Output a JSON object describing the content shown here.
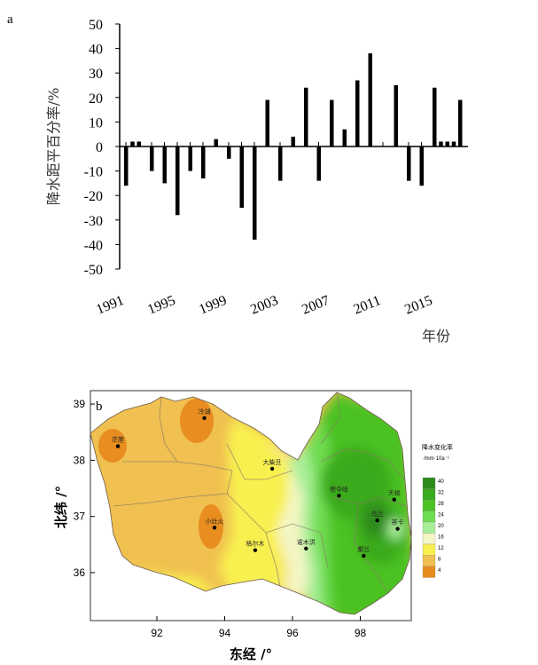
{
  "chart_data": [
    {
      "type": "bar",
      "panel_label": "a",
      "ylabel": "降水距平百分率/%",
      "xlabel": "年份",
      "ylim": [
        -50,
        50
      ],
      "yticks": [
        -50,
        -40,
        -30,
        -20,
        -10,
        0,
        10,
        20,
        30,
        40,
        50
      ],
      "xtick_labels": [
        "1991",
        "1995",
        "1999",
        "2003",
        "2007",
        "2011",
        "2015"
      ],
      "xtick_years": [
        1991,
        1995,
        1999,
        2003,
        2007,
        2011,
        2015
      ],
      "grid": false,
      "bars": [
        {
          "x": 1991,
          "y": -16
        },
        {
          "x": 1991.5,
          "y": 2
        },
        {
          "x": 1992,
          "y": 2
        },
        {
          "x": 1993,
          "y": -10
        },
        {
          "x": 1994,
          "y": -15
        },
        {
          "x": 1995,
          "y": -28
        },
        {
          "x": 1996,
          "y": -10
        },
        {
          "x": 1997,
          "y": -13
        },
        {
          "x": 1998,
          "y": 3
        },
        {
          "x": 1999,
          "y": -5
        },
        {
          "x": 2000,
          "y": -25
        },
        {
          "x": 2001,
          "y": -38
        },
        {
          "x": 2002,
          "y": 19
        },
        {
          "x": 2003,
          "y": -14
        },
        {
          "x": 2004,
          "y": 4
        },
        {
          "x": 2005,
          "y": 24
        },
        {
          "x": 2006,
          "y": -14
        },
        {
          "x": 2007,
          "y": 19
        },
        {
          "x": 2008,
          "y": 7
        },
        {
          "x": 2009,
          "y": 27
        },
        {
          "x": 2010,
          "y": 38
        },
        {
          "x": 2012,
          "y": 25
        },
        {
          "x": 2013,
          "y": -14
        },
        {
          "x": 2014,
          "y": -16
        },
        {
          "x": 2015,
          "y": 24
        },
        {
          "x": 2015.5,
          "y": 2
        },
        {
          "x": 2016,
          "y": 2
        },
        {
          "x": 2016.5,
          "y": 2
        },
        {
          "x": 2017,
          "y": 19
        }
      ]
    },
    {
      "type": "heatmap",
      "panel_label": "b",
      "xlabel": "东经 /°",
      "ylabel": "北纬 /°",
      "xlim": [
        90,
        100
      ],
      "ylim": [
        35.4,
        39.3
      ],
      "xticks": [
        92,
        94,
        96,
        98
      ],
      "yticks": [
        36,
        37,
        38,
        39
      ],
      "legend": {
        "title_line1": "降水变化率",
        "title_line2": "/mm·10a⁻¹",
        "levels": [
          {
            "value": "40",
            "color": "#2e8b1a"
          },
          {
            "value": "32",
            "color": "#3aaa1e"
          },
          {
            "value": "28",
            "color": "#4cc223"
          },
          {
            "value": "24",
            "color": "#6edc50"
          },
          {
            "value": "20",
            "color": "#a8ee98"
          },
          {
            "value": "16",
            "color": "#f4f6c4"
          },
          {
            "value": "12",
            "color": "#f8f050"
          },
          {
            "value": "8",
            "color": "#f0c050"
          },
          {
            "value": "4",
            "color": "#e88a1e"
          }
        ]
      },
      "stations": [
        {
          "name": "冷湖",
          "lon": 93.4,
          "lat": 38.75
        },
        {
          "name": "茫崖",
          "lon": 90.85,
          "lat": 38.25
        },
        {
          "name": "小灶火",
          "lon": 93.7,
          "lat": 36.8
        },
        {
          "name": "格尔木",
          "lon": 94.9,
          "lat": 36.4
        },
        {
          "name": "大柴旦",
          "lon": 95.4,
          "lat": 37.85
        },
        {
          "name": "诺木洪",
          "lon": 96.4,
          "lat": 36.43
        },
        {
          "name": "德令哈",
          "lon": 97.37,
          "lat": 37.37
        },
        {
          "name": "天峻",
          "lon": 99.0,
          "lat": 37.3
        },
        {
          "name": "乌兰",
          "lon": 98.5,
          "lat": 36.93
        },
        {
          "name": "都兰",
          "lon": 98.1,
          "lat": 36.3
        },
        {
          "name": "茶卡",
          "lon": 99.1,
          "lat": 36.78
        }
      ]
    }
  ]
}
